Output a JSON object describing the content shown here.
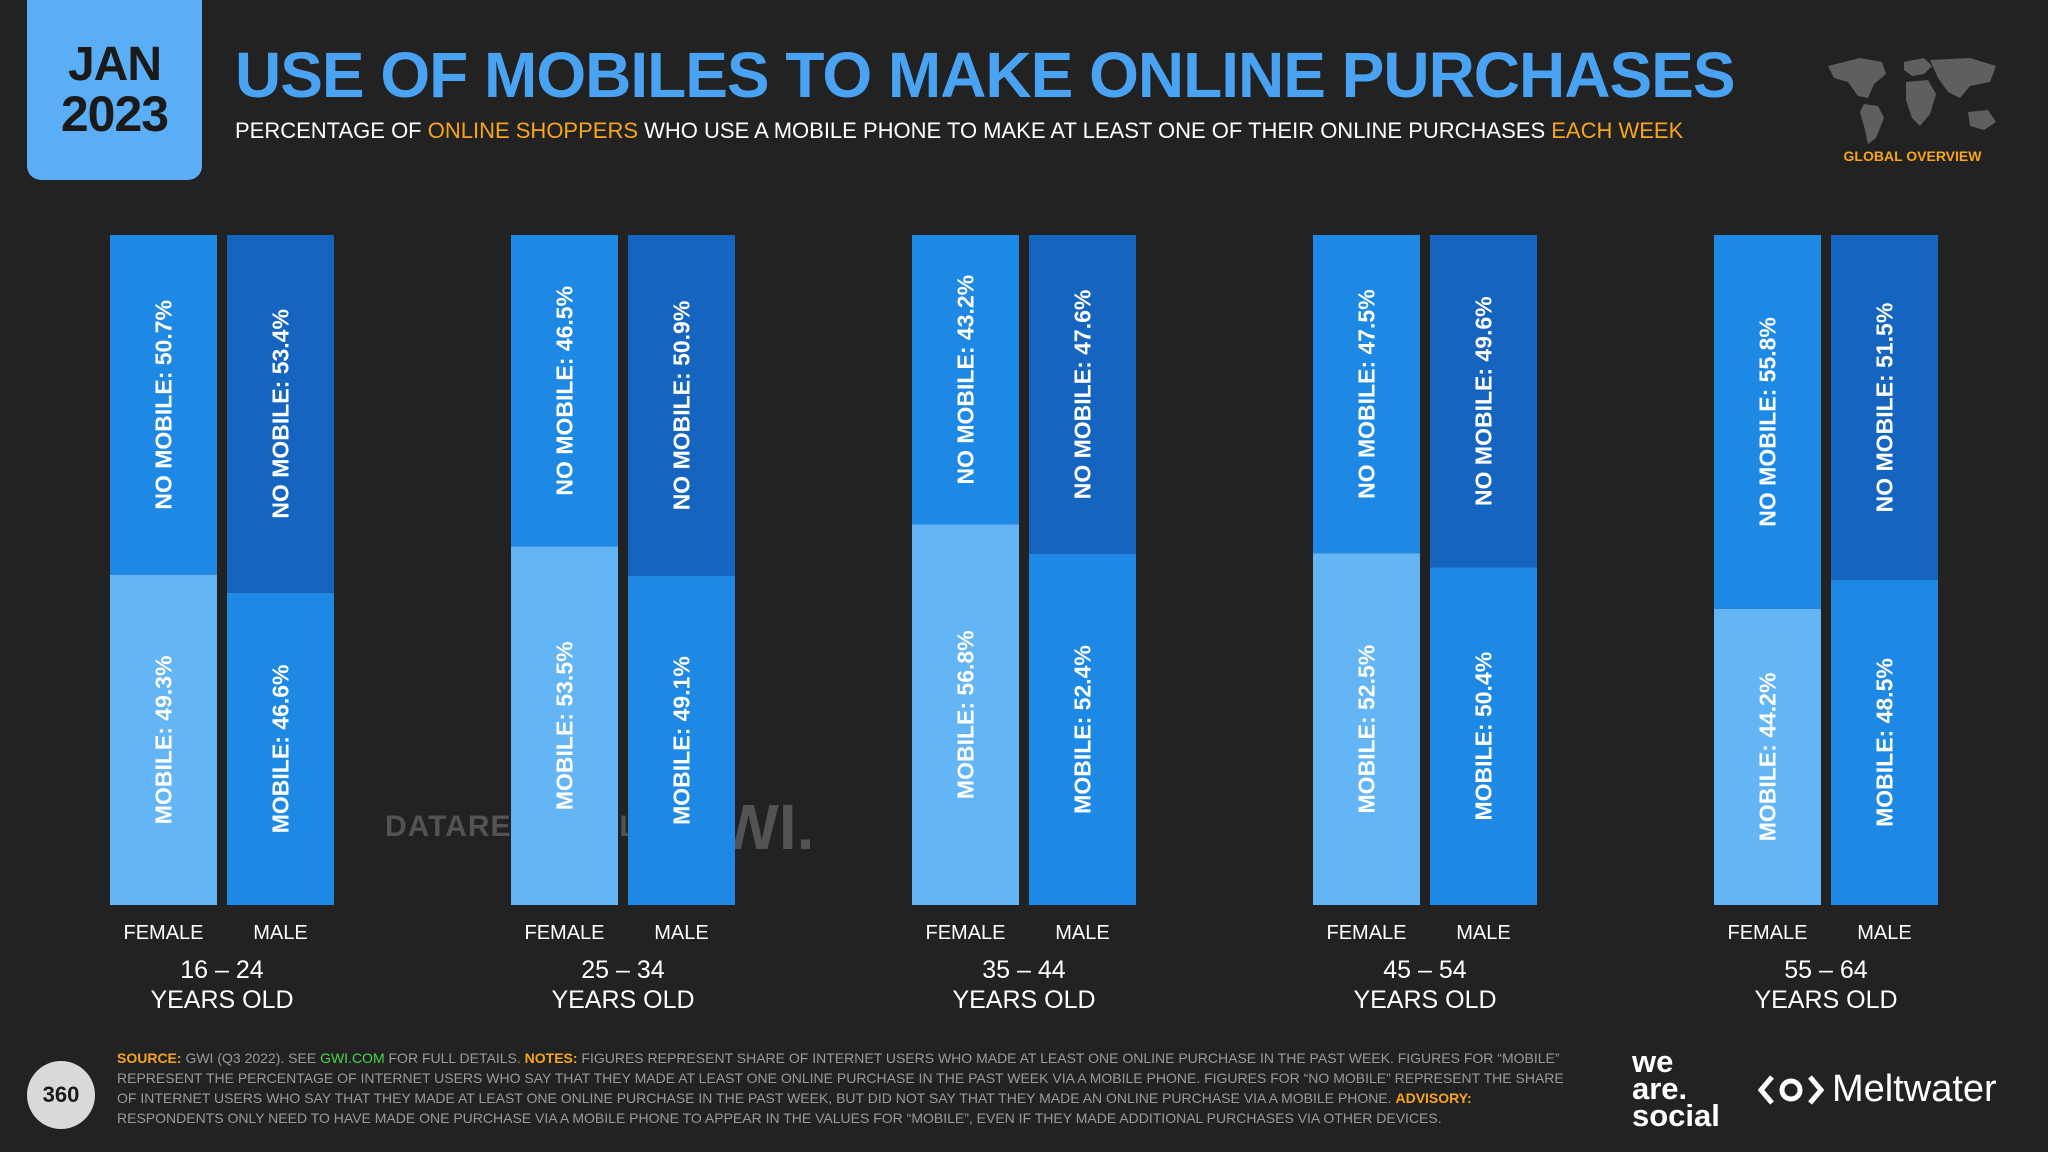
{
  "header": {
    "month": "JAN",
    "year": "2023",
    "title": "USE OF MOBILES TO MAKE ONLINE PURCHASES",
    "subtitle_parts": [
      "PERCENTAGE OF ",
      "ONLINE SHOPPERS",
      " WHO USE A MOBILE PHONE TO MAKE AT LEAST ONE OF THEIR ONLINE PURCHASES ",
      "EACH WEEK"
    ],
    "badge": "GLOBAL OVERVIEW"
  },
  "colors": {
    "accent": "#4aa3f2",
    "highlight": "#f7a51c",
    "female_mobile": "#64b5f6",
    "female_no_mobile": "#1e88e5",
    "male_mobile": "#1e88e5",
    "male_no_mobile": "#1565c0"
  },
  "watermark": {
    "datareportal": "DATAREPORTAL",
    "gwi": "GWI."
  },
  "chart_data": {
    "type": "bar",
    "stacked": true,
    "orientation": "vertical",
    "ylim": [
      0,
      100
    ],
    "groups": [
      {
        "line1": "16 – 24",
        "line2": "YEARS OLD",
        "bars": [
          {
            "label": "FEMALE",
            "mobile": 49.3,
            "no_mobile": 50.7,
            "mobile_text": "MOBILE: 49.3%",
            "no_mobile_text": "NO MOBILE: 50.7%"
          },
          {
            "label": "MALE",
            "mobile": 46.6,
            "no_mobile": 53.4,
            "mobile_text": "MOBILE: 46.6%",
            "no_mobile_text": "NO MOBILE: 53.4%"
          }
        ]
      },
      {
        "line1": "25 – 34",
        "line2": "YEARS OLD",
        "bars": [
          {
            "label": "FEMALE",
            "mobile": 53.5,
            "no_mobile": 46.5,
            "mobile_text": "MOBILE: 53.5%",
            "no_mobile_text": "NO MOBILE: 46.5%"
          },
          {
            "label": "MALE",
            "mobile": 49.1,
            "no_mobile": 50.9,
            "mobile_text": "MOBILE: 49.1%",
            "no_mobile_text": "NO MOBILE: 50.9%"
          }
        ]
      },
      {
        "line1": "35 – 44",
        "line2": "YEARS OLD",
        "bars": [
          {
            "label": "FEMALE",
            "mobile": 56.8,
            "no_mobile": 43.2,
            "mobile_text": "MOBILE: 56.8%",
            "no_mobile_text": "NO MOBILE: 43.2%"
          },
          {
            "label": "MALE",
            "mobile": 52.4,
            "no_mobile": 47.6,
            "mobile_text": "MOBILE: 52.4%",
            "no_mobile_text": "NO MOBILE: 47.6%"
          }
        ]
      },
      {
        "line1": "45 – 54",
        "line2": "YEARS OLD",
        "bars": [
          {
            "label": "FEMALE",
            "mobile": 52.5,
            "no_mobile": 47.5,
            "mobile_text": "MOBILE: 52.5%",
            "no_mobile_text": "NO MOBILE: 47.5%"
          },
          {
            "label": "MALE",
            "mobile": 50.4,
            "no_mobile": 49.6,
            "mobile_text": "MOBILE: 50.4%",
            "no_mobile_text": "NO MOBILE: 49.6%"
          }
        ]
      },
      {
        "line1": "55 – 64",
        "line2": "YEARS OLD",
        "bars": [
          {
            "label": "FEMALE",
            "mobile": 44.2,
            "no_mobile": 55.8,
            "mobile_text": "MOBILE: 44.2%",
            "no_mobile_text": "NO MOBILE: 55.8%"
          },
          {
            "label": "MALE",
            "mobile": 48.5,
            "no_mobile": 51.5,
            "mobile_text": "MOBILE: 48.5%",
            "no_mobile_text": "NO MOBILE: 51.5%"
          }
        ]
      }
    ]
  },
  "footer": {
    "page_number": "360",
    "source_label": "SOURCE:",
    "source_text_1": " GWI (Q3 2022). SEE ",
    "source_link": "GWI.COM",
    "source_text_2": " FOR FULL DETAILS. ",
    "notes_label": "NOTES:",
    "notes_text": " FIGURES REPRESENT SHARE OF INTERNET USERS WHO MADE AT LEAST ONE ONLINE PURCHASE IN THE PAST WEEK. FIGURES FOR “MOBILE” REPRESENT THE PERCENTAGE OF INTERNET USERS WHO SAY THAT THEY MADE AT LEAST ONE ONLINE PURCHASE IN THE PAST WEEK VIA A MOBILE PHONE. FIGURES FOR “NO MOBILE” REPRESENT THE SHARE OF INTERNET USERS WHO SAY THAT THEY MADE AT LEAST ONE ONLINE PURCHASE IN THE PAST WEEK, BUT DID NOT SAY THAT THEY MADE AN ONLINE PURCHASE VIA A MOBILE PHONE. ",
    "advisory_label": "ADVISORY:",
    "advisory_text": " RESPONDENTS ONLY NEED TO HAVE MADE ONE PURCHASE VIA A MOBILE PHONE TO APPEAR IN THE VALUES FOR “MOBILE”, EVEN IF THEY MADE ADDITIONAL PURCHASES VIA OTHER DEVICES.",
    "brand_1_line1": "we",
    "brand_1_line2": "are.",
    "brand_1_line3": "social",
    "brand_2": "Meltwater"
  }
}
